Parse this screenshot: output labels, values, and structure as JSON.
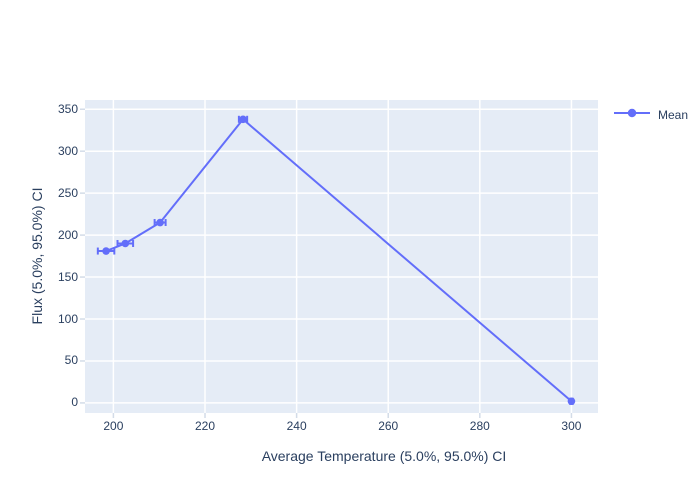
{
  "figure": {
    "background_color": "#ffffff",
    "plot_background_color": "#E5ECF6",
    "grid_color": "#ffffff",
    "tick_color": "#d3dce8",
    "text_color": "#2a3f5f"
  },
  "legend": {
    "items": [
      {
        "label": "Mean",
        "symbol": "line-with-marker",
        "color": "#636EFA"
      }
    ]
  },
  "chart_data": {
    "type": "line",
    "mode": "lines+markers",
    "title": "",
    "xlabel": "Average Temperature (5.0%, 95.0%) CI",
    "ylabel": "Flux (5.0%, 95.0%) CI",
    "series": [
      {
        "name": "Mean",
        "color": "#636EFA",
        "x": [
          198.4,
          202.6,
          210.2,
          228.3,
          300
        ],
        "y": [
          181,
          190,
          215,
          338,
          2
        ],
        "x_error": [
          1.8,
          1.7,
          1.2,
          0.9,
          0.3
        ]
      }
    ],
    "x_ticks": [
      200,
      220,
      240,
      260,
      280,
      300
    ],
    "y_ticks": [
      0,
      50,
      100,
      150,
      200,
      250,
      300,
      350
    ],
    "xlim": [
      193.8,
      305.8
    ],
    "ylim": [
      -12,
      361
    ],
    "grid": true,
    "legend_position": "top-right-outside"
  }
}
